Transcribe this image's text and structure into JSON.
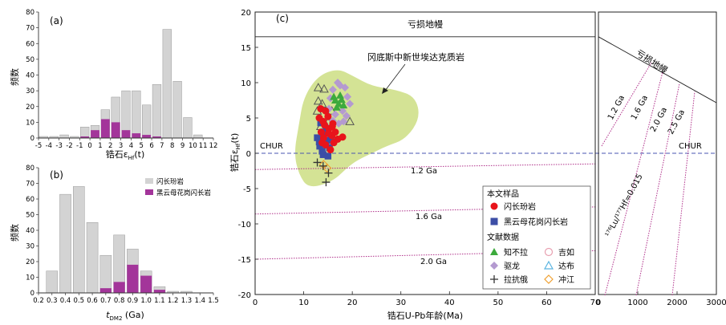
{
  "chart_data": [
    {
      "panel": "(a)",
      "type": "bar",
      "ylabel": "频数",
      "xlabel_main": "锆石ε",
      "xlabel_sub": "Hf",
      "xlabel_tail": "(t)",
      "x_ticks": [
        "-5",
        "-4",
        "-3",
        "-2",
        "-1",
        "0",
        "1",
        "2",
        "3",
        "4",
        "5",
        "6",
        "7",
        "8",
        "9",
        "10",
        "11",
        "12"
      ],
      "y_ticks": [
        "0",
        "10",
        "20",
        "30",
        "40",
        "50",
        "60",
        "70",
        "80"
      ],
      "xlim": [
        -5,
        12
      ],
      "ylim": [
        0,
        80
      ],
      "bin_width": 1,
      "series": [
        {
          "name": "all",
          "color": "#d3d3d3",
          "bins": [
            [
              -4.5,
              1
            ],
            [
              -3.5,
              1
            ],
            [
              -2.5,
              2
            ],
            [
              -1.5,
              1
            ],
            [
              -0.5,
              7
            ],
            [
              0.5,
              8
            ],
            [
              1.5,
              18
            ],
            [
              2.5,
              26
            ],
            [
              3.5,
              30
            ],
            [
              4.5,
              30
            ],
            [
              5.5,
              21
            ],
            [
              6.5,
              34
            ],
            [
              7.5,
              69
            ],
            [
              8.5,
              36
            ],
            [
              9.5,
              13
            ],
            [
              10.5,
              2
            ]
          ]
        },
        {
          "name": "granite",
          "color": "#a3359a",
          "bins": [
            [
              -0.5,
              1
            ],
            [
              0.5,
              5
            ],
            [
              1.5,
              12
            ],
            [
              2.5,
              10
            ],
            [
              3.5,
              5
            ],
            [
              4.5,
              3
            ],
            [
              5.5,
              2
            ],
            [
              6.5,
              1
            ]
          ]
        }
      ]
    },
    {
      "panel": "(b)",
      "type": "bar",
      "ylabel": "频数",
      "xlabel_main": "t",
      "xlabel_sub": "DM2",
      "xlabel_tail": " (Ga)",
      "x_ticks": [
        "0.2",
        "0.3",
        "0.4",
        "0.5",
        "0.6",
        "0.7",
        "0.8",
        "0.9",
        "1.0",
        "1.1",
        "1.2",
        "1.3",
        "1.4",
        "1.5"
      ],
      "y_ticks": [
        "0",
        "10",
        "20",
        "30",
        "40",
        "50",
        "60",
        "70",
        "80"
      ],
      "xlim": [
        0.2,
        1.5
      ],
      "ylim": [
        0,
        80
      ],
      "bin_width": 0.1,
      "legend": [
        "闪长玢岩",
        "黑云母花岗闪长岩"
      ],
      "series": [
        {
          "name": "闪长玢岩",
          "color": "#d3d3d3",
          "bins": [
            [
              0.3,
              14
            ],
            [
              0.4,
              63
            ],
            [
              0.5,
              68
            ],
            [
              0.6,
              45
            ],
            [
              0.7,
              24
            ],
            [
              0.8,
              37
            ],
            [
              0.9,
              28
            ],
            [
              1.0,
              14
            ],
            [
              1.1,
              4
            ],
            [
              1.2,
              1
            ],
            [
              1.3,
              1
            ]
          ]
        },
        {
          "name": "黑云母花岗闪长岩",
          "color": "#a3359a",
          "bins": [
            [
              0.7,
              3
            ],
            [
              0.8,
              7
            ],
            [
              0.9,
              18
            ],
            [
              1.0,
              11
            ],
            [
              1.1,
              2
            ]
          ]
        }
      ]
    },
    {
      "panel": "(c)",
      "type": "scatter",
      "xlabel": "锆石U-Pb年龄(Ma)",
      "ylabel_main": "锆石ε",
      "ylabel_sub": "Hf",
      "ylabel_tail": "(t)",
      "xlim": [
        0,
        70
      ],
      "ylim": [
        -20,
        20
      ],
      "x_ticks": [
        "0",
        "10",
        "20",
        "30",
        "40",
        "50",
        "60",
        "70"
      ],
      "y_ticks": [
        "-20",
        "-15",
        "-10",
        "-5",
        "0",
        "5",
        "10",
        "15",
        "20"
      ],
      "right_xlim": [
        0,
        3000
      ],
      "right_x_ticks": [
        "0",
        "1000",
        "2000",
        "3000"
      ],
      "labels": {
        "depleted_mantle": "亏损地幔",
        "chur": "CHUR",
        "field": "冈底斯中新世埃达克质岩",
        "lines": [
          "1.2 Ga",
          "1.6 Ga",
          "2.0 Ga",
          "2.5 Ga"
        ],
        "lu_hf": "¹⁷⁶Lu/¹⁷⁷Hf=0.015"
      },
      "depleted_mantle_y": 16.5,
      "model_lines": [
        {
          "label": "1.2 Ga",
          "y_at_0": -2.3,
          "y_at_70": -1.5
        },
        {
          "label": "1.6 Ga",
          "y_at_0": -8.6,
          "y_at_70": -7.6
        },
        {
          "label": "2.0 Ga",
          "y_at_0": -15.0,
          "y_at_70": -13.8
        }
      ],
      "adakite_field": [
        [
          10,
          8
        ],
        [
          13,
          11
        ],
        [
          17,
          12
        ],
        [
          20,
          11
        ],
        [
          24,
          9.5
        ],
        [
          29,
          9
        ],
        [
          33,
          8
        ],
        [
          34,
          5
        ],
        [
          31,
          2
        ],
        [
          27,
          1
        ],
        [
          24,
          0
        ],
        [
          21,
          -1
        ],
        [
          19,
          -2
        ],
        [
          16,
          -4
        ],
        [
          11,
          -5
        ],
        [
          9,
          -3
        ],
        [
          8,
          0
        ],
        [
          9,
          4
        ]
      ],
      "legend_title_1": "本文样品",
      "legend_title_2": "文献数据",
      "legend_items": [
        "闪长玢岩",
        "黑云母花岗闪长岩",
        "知不拉",
        "吉如",
        "驱龙",
        "达布",
        "拉抗俄",
        "冲江"
      ],
      "series": [
        {
          "name": "闪长玢岩",
          "marker": "circle-filled",
          "color": "#e8141b",
          "points": [
            [
              13.5,
              6.3
            ],
            [
              14.5,
              6.0
            ],
            [
              13.2,
              5.0
            ],
            [
              14.0,
              4.5
            ],
            [
              15.0,
              5.2
            ],
            [
              14.3,
              4.0
            ],
            [
              15.2,
              3.5
            ],
            [
              16.0,
              4.2
            ],
            [
              13.6,
              3.0
            ],
            [
              15.8,
              2.5
            ],
            [
              16.5,
              3.0
            ],
            [
              17.0,
              2.0
            ],
            [
              14.5,
              1.2
            ],
            [
              15.5,
              0.5
            ],
            [
              13.8,
              1.5
            ],
            [
              16.2,
              1.5
            ],
            [
              18.0,
              2.3
            ],
            [
              15.1,
              2.8
            ],
            [
              14.1,
              2.2
            ],
            [
              15.9,
              3.8
            ]
          ]
        },
        {
          "name": "黑云母花岗闪长岩",
          "marker": "square-filled",
          "color": "#3c4ea6",
          "points": [
            [
              12.8,
              2.2
            ],
            [
              13.3,
              1.0
            ],
            [
              13.8,
              0.3
            ],
            [
              14.2,
              2.8
            ],
            [
              14.8,
              1.8
            ],
            [
              15.3,
              0.8
            ],
            [
              13.5,
              4.3
            ],
            [
              14.6,
              3.3
            ],
            [
              15.6,
              2.0
            ],
            [
              14.0,
              -0.2
            ],
            [
              13.2,
              1.6
            ],
            [
              15.0,
              -0.4
            ]
          ]
        },
        {
          "name": "知不拉",
          "marker": "triangle-filled",
          "color": "#3caa3c",
          "points": [
            [
              16.5,
              7.5
            ],
            [
              17.2,
              7.0
            ],
            [
              17.8,
              7.6
            ],
            [
              16.8,
              6.5
            ],
            [
              17.5,
              8.2
            ],
            [
              18.2,
              6.8
            ],
            [
              16.2,
              8.0
            ]
          ]
        },
        {
          "name": "吉如",
          "marker": "circle-open",
          "color": "#e8a0b0",
          "points": [
            [
              14.2,
              1.2
            ]
          ]
        },
        {
          "name": "驱龙",
          "marker": "diamond-filled",
          "color": "#b49ad0",
          "points": [
            [
              16.0,
              9.0
            ],
            [
              17.0,
              10.0
            ],
            [
              18.5,
              9.3
            ],
            [
              19.0,
              8.0
            ],
            [
              18.0,
              6.0
            ],
            [
              19.5,
              7.0
            ],
            [
              16.5,
              5.5
            ],
            [
              15.5,
              7.8
            ],
            [
              17.5,
              9.6
            ],
            [
              18.8,
              5.3
            ],
            [
              16.0,
              4.6
            ],
            [
              15.2,
              6.3
            ],
            [
              17.2,
              4.2
            ],
            [
              18.2,
              4.5
            ]
          ]
        },
        {
          "name": "达布",
          "marker": "triangle-open",
          "color": "#5ab4e0",
          "points": [
            [
              14.6,
              4.0
            ]
          ]
        },
        {
          "name": "拉抗俄",
          "marker": "cross",
          "color": "#333333",
          "points": [
            [
              12.8,
              -1.3
            ],
            [
              14.0,
              -1.8
            ],
            [
              15.1,
              -2.8
            ],
            [
              14.6,
              -4.1
            ]
          ]
        },
        {
          "name": "冲江",
          "marker": "diamond-open",
          "color": "#f0a030",
          "points": [
            [
              14.1,
              -1.6
            ],
            [
              14.8,
              -2.1
            ]
          ]
        },
        {
          "name": "open-triangles",
          "marker": "triangle-open-black",
          "color": "#555555",
          "points": [
            [
              13.0,
              9.3
            ],
            [
              14.2,
              9.1
            ],
            [
              13.0,
              7.4
            ],
            [
              13.8,
              7.0
            ],
            [
              12.8,
              6.0
            ],
            [
              15.8,
              6.0
            ],
            [
              19.5,
              4.5
            ],
            [
              15.0,
              4.4
            ],
            [
              13.5,
              3.8
            ]
          ]
        }
      ]
    }
  ]
}
